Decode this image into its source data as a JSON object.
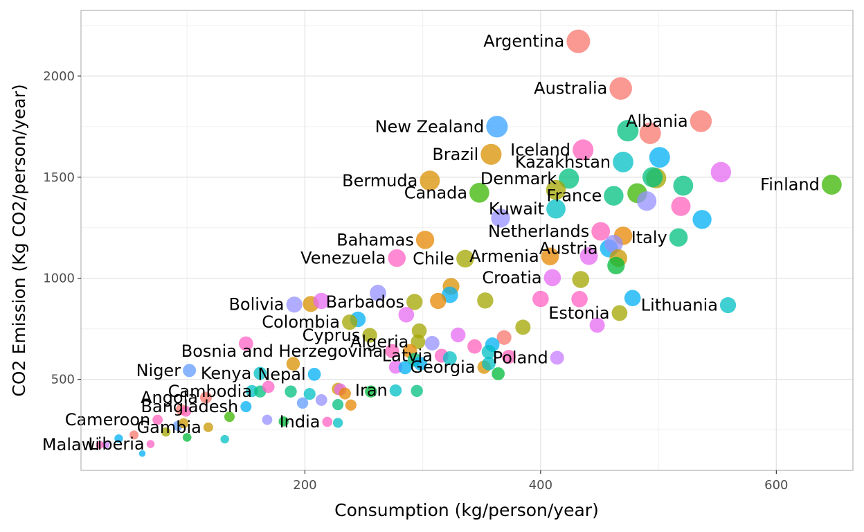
{
  "chart_data": {
    "type": "scatter",
    "title": "",
    "xlabel": "Consumption (kg/person/year)",
    "ylabel": "CO2 Emission (Kg CO2/person/year)",
    "xlim": [
      10,
      665
    ],
    "ylim": [
      50,
      2325
    ],
    "xticks": [
      200,
      400,
      600
    ],
    "yticks": [
      500,
      1000,
      1500,
      2000
    ],
    "grid": true,
    "legend": "none",
    "point_encoding": "point size proportional to value; color varies by country",
    "points": [
      {
        "label": "Argentina",
        "x": 432,
        "y": 2172,
        "color": "#F8766D"
      },
      {
        "label": "Australia",
        "x": 468,
        "y": 1939,
        "color": "#F8766D"
      },
      {
        "label": "New Zealand",
        "x": 363,
        "y": 1750,
        "color": "#35A2FF"
      },
      {
        "label": "Albania",
        "x": 536,
        "y": 1777,
        "color": "#F8766D"
      },
      {
        "label": "Iceland",
        "x": 436,
        "y": 1635,
        "color": "#FF62BC"
      },
      {
        "label": "",
        "x": 474,
        "y": 1730,
        "color": "#00BF7D"
      },
      {
        "label": "",
        "x": 493,
        "y": 1717,
        "color": "#F8766D"
      },
      {
        "label": "Brazil",
        "x": 358,
        "y": 1613,
        "color": "#D89000"
      },
      {
        "label": "Kazakhstan",
        "x": 470,
        "y": 1575,
        "color": "#00BFC4"
      },
      {
        "label": "",
        "x": 501,
        "y": 1598,
        "color": "#00B0F6"
      },
      {
        "label": "",
        "x": 553,
        "y": 1525,
        "color": "#E76BF3"
      },
      {
        "label": "Bermuda",
        "x": 306,
        "y": 1483,
        "color": "#D89000"
      },
      {
        "label": "Denmark",
        "x": 424,
        "y": 1493,
        "color": "#00BF7D"
      },
      {
        "label": "",
        "x": 498,
        "y": 1495,
        "color": "#A3A500"
      },
      {
        "label": "",
        "x": 495,
        "y": 1500,
        "color": "#00BF7D"
      },
      {
        "label": "",
        "x": 521,
        "y": 1458,
        "color": "#00BF7D"
      },
      {
        "label": "Finland",
        "x": 647,
        "y": 1463,
        "color": "#39B600"
      },
      {
        "label": "Canada",
        "x": 348,
        "y": 1423,
        "color": "#39B600"
      },
      {
        "label": "",
        "x": 413,
        "y": 1437,
        "color": "#A3A500"
      },
      {
        "label": "France",
        "x": 462,
        "y": 1408,
        "color": "#00BF7D"
      },
      {
        "label": "",
        "x": 482,
        "y": 1421,
        "color": "#39B600"
      },
      {
        "label": "",
        "x": 490,
        "y": 1382,
        "color": "#9590FF"
      },
      {
        "label": "",
        "x": 519,
        "y": 1356,
        "color": "#FF62BC"
      },
      {
        "label": "Kuwait",
        "x": 413,
        "y": 1343,
        "color": "#00BFC4"
      },
      {
        "label": "",
        "x": 366,
        "y": 1298,
        "color": "#9590FF"
      },
      {
        "label": "",
        "x": 537,
        "y": 1291,
        "color": "#00B0F6"
      },
      {
        "label": "Netherlands",
        "x": 451,
        "y": 1232,
        "color": "#FF62BC"
      },
      {
        "label": "",
        "x": 470,
        "y": 1210,
        "color": "#E58700"
      },
      {
        "label": "Italy",
        "x": 517,
        "y": 1202,
        "color": "#00BF7D"
      },
      {
        "label": "Bahamas",
        "x": 302,
        "y": 1190,
        "color": "#E58700"
      },
      {
        "label": "Austria",
        "x": 458,
        "y": 1148,
        "color": "#00B0F6"
      },
      {
        "label": "",
        "x": 462,
        "y": 1170,
        "color": "#9590FF"
      },
      {
        "label": "",
        "x": 466,
        "y": 1100,
        "color": "#C99800"
      },
      {
        "label": "",
        "x": 464,
        "y": 1063,
        "color": "#00BA38"
      },
      {
        "label": "Venezuela",
        "x": 278,
        "y": 1100,
        "color": "#FF61C3"
      },
      {
        "label": "Chile",
        "x": 336,
        "y": 1097,
        "color": "#A3A500"
      },
      {
        "label": "Armenia",
        "x": 408,
        "y": 1108,
        "color": "#E58700"
      },
      {
        "label": "",
        "x": 441,
        "y": 1110,
        "color": "#E76BF3"
      },
      {
        "label": "Croatia",
        "x": 410,
        "y": 1003,
        "color": "#E76BF3"
      },
      {
        "label": "",
        "x": 434,
        "y": 994,
        "color": "#A3A500"
      },
      {
        "label": "",
        "x": 324,
        "y": 960,
        "color": "#D89000"
      },
      {
        "label": "",
        "x": 323,
        "y": 918,
        "color": "#00B0F6"
      },
      {
        "label": "",
        "x": 262,
        "y": 927,
        "color": "#9590FF"
      },
      {
        "label": "Barbados",
        "x": 293,
        "y": 883,
        "color": "#A3A500"
      },
      {
        "label": "",
        "x": 313,
        "y": 888,
        "color": "#E58700"
      },
      {
        "label": "",
        "x": 353,
        "y": 890,
        "color": "#A3A500"
      },
      {
        "label": "",
        "x": 400,
        "y": 898,
        "color": "#FF61C3"
      },
      {
        "label": "",
        "x": 433,
        "y": 897,
        "color": "#FF61C3"
      },
      {
        "label": "",
        "x": 478,
        "y": 902,
        "color": "#00B0F6"
      },
      {
        "label": "Lithuania",
        "x": 559,
        "y": 867,
        "color": "#00BFC4"
      },
      {
        "label": "Bolivia",
        "x": 191,
        "y": 870,
        "color": "#9590FF"
      },
      {
        "label": "",
        "x": 205,
        "y": 873,
        "color": "#D89000"
      },
      {
        "label": "",
        "x": 214,
        "y": 888,
        "color": "#E76BF3"
      },
      {
        "label": "",
        "x": 245,
        "y": 797,
        "color": "#00B0F6"
      },
      {
        "label": "",
        "x": 286,
        "y": 820,
        "color": "#E76BF3"
      },
      {
        "label": "Estonia",
        "x": 467,
        "y": 828,
        "color": "#A3A500"
      },
      {
        "label": "Colombia",
        "x": 238,
        "y": 783,
        "color": "#A3A500"
      },
      {
        "label": "",
        "x": 385,
        "y": 758,
        "color": "#A3A500"
      },
      {
        "label": "",
        "x": 448,
        "y": 768,
        "color": "#E76BF3"
      },
      {
        "label": "Cyprus",
        "x": 255,
        "y": 718,
        "color": "#A3A500"
      },
      {
        "label": "",
        "x": 297,
        "y": 740,
        "color": "#A3A500"
      },
      {
        "label": "",
        "x": 330,
        "y": 720,
        "color": "#E76BF3"
      },
      {
        "label": "",
        "x": 369,
        "y": 707,
        "color": "#F8766D"
      },
      {
        "label": "Algeria",
        "x": 296,
        "y": 686,
        "color": "#A3A500"
      },
      {
        "label": "",
        "x": 308,
        "y": 679,
        "color": "#9590FF"
      },
      {
        "label": "",
        "x": 344,
        "y": 663,
        "color": "#FF62BC"
      },
      {
        "label": "",
        "x": 359,
        "y": 672,
        "color": "#00B0F6"
      },
      {
        "label": "",
        "x": 150,
        "y": 677,
        "color": "#FF61C3"
      },
      {
        "label": "Bosnia and Herzegovina",
        "x": 274,
        "y": 640,
        "color": "#FF62BC"
      },
      {
        "label": "",
        "x": 289,
        "y": 640,
        "color": "#E58700"
      },
      {
        "label": "",
        "x": 293,
        "y": 597,
        "color": "#00BF7D"
      },
      {
        "label": "Latvia",
        "x": 316,
        "y": 617,
        "color": "#FF61C3"
      },
      {
        "label": "",
        "x": 323,
        "y": 605,
        "color": "#00BFC4"
      },
      {
        "label": "",
        "x": 356,
        "y": 636,
        "color": "#00BFC4"
      },
      {
        "label": "",
        "x": 373,
        "y": 612,
        "color": "#FF62BC"
      },
      {
        "label": "Poland",
        "x": 414,
        "y": 607,
        "color": "#C77CFF"
      },
      {
        "label": "",
        "x": 277,
        "y": 561,
        "color": "#E76BF3"
      },
      {
        "label": "",
        "x": 285,
        "y": 558,
        "color": "#00B0F6"
      },
      {
        "label": "",
        "x": 298,
        "y": 578,
        "color": "#00B0F6"
      },
      {
        "label": "Georgia",
        "x": 352,
        "y": 560,
        "color": "#D89000"
      },
      {
        "label": "",
        "x": 356,
        "y": 578,
        "color": "#00BFC4"
      },
      {
        "label": "",
        "x": 364,
        "y": 528,
        "color": "#00BA38"
      },
      {
        "label": "Niger",
        "x": 102,
        "y": 544,
        "color": "#619CFF"
      },
      {
        "label": "",
        "x": 190,
        "y": 577,
        "color": "#D89000"
      },
      {
        "label": "Kenya",
        "x": 162,
        "y": 530,
        "color": "#00BFC4"
      },
      {
        "label": "Nepal",
        "x": 208,
        "y": 525,
        "color": "#00B0F6"
      },
      {
        "label": "",
        "x": 155,
        "y": 442,
        "color": "#00BFC4"
      },
      {
        "label": "Cambodia",
        "x": 162,
        "y": 440,
        "color": "#00BF7D"
      },
      {
        "label": "",
        "x": 188,
        "y": 440,
        "color": "#00BF7D"
      },
      {
        "label": "",
        "x": 204,
        "y": 428,
        "color": "#00BFC4"
      },
      {
        "label": "",
        "x": 228,
        "y": 453,
        "color": "#C99800"
      },
      {
        "label": "",
        "x": 230,
        "y": 450,
        "color": "#E76BF3"
      },
      {
        "label": "",
        "x": 234,
        "y": 430,
        "color": "#E58700"
      },
      {
        "label": "",
        "x": 256,
        "y": 440,
        "color": "#00BA38"
      },
      {
        "label": "Iran",
        "x": 277,
        "y": 445,
        "color": "#00BFC4"
      },
      {
        "label": "",
        "x": 295,
        "y": 443,
        "color": "#00BF7D"
      },
      {
        "label": "Angola",
        "x": 116,
        "y": 410,
        "color": "#F8766D"
      },
      {
        "label": "",
        "x": 169,
        "y": 463,
        "color": "#FF61C3"
      },
      {
        "label": "",
        "x": 198,
        "y": 383,
        "color": "#619CFF"
      },
      {
        "label": "",
        "x": 214,
        "y": 398,
        "color": "#9590FF"
      },
      {
        "label": "",
        "x": 228,
        "y": 375,
        "color": "#00BF7D"
      },
      {
        "label": "",
        "x": 239,
        "y": 373,
        "color": "#E58700"
      },
      {
        "label": "Bangladesh",
        "x": 150,
        "y": 365,
        "color": "#00B0F6"
      },
      {
        "label": "",
        "x": 95,
        "y": 350,
        "color": "#F8766D"
      },
      {
        "label": "",
        "x": 99,
        "y": 342,
        "color": "#FF62BC"
      },
      {
        "label": "Cameroon",
        "x": 75,
        "y": 300,
        "color": "#FF62BC"
      },
      {
        "label": "",
        "x": 92,
        "y": 270,
        "color": "#619CFF"
      },
      {
        "label": "",
        "x": 97,
        "y": 283,
        "color": "#C99800"
      },
      {
        "label": "",
        "x": 136,
        "y": 315,
        "color": "#39B600"
      },
      {
        "label": "Gambia",
        "x": 118,
        "y": 263,
        "color": "#C99800"
      },
      {
        "label": "",
        "x": 168,
        "y": 300,
        "color": "#9590FF"
      },
      {
        "label": "",
        "x": 182,
        "y": 292,
        "color": "#00BA38"
      },
      {
        "label": "India",
        "x": 219,
        "y": 290,
        "color": "#FF61C3"
      },
      {
        "label": "",
        "x": 228,
        "y": 285,
        "color": "#00BFC4"
      },
      {
        "label": "",
        "x": 82,
        "y": 240,
        "color": "#A3A500"
      },
      {
        "label": "",
        "x": 100,
        "y": 213,
        "color": "#00BA38"
      },
      {
        "label": "Liberia",
        "x": 69,
        "y": 180,
        "color": "#FF61C3"
      },
      {
        "label": "",
        "x": 55,
        "y": 225,
        "color": "#F8766D"
      },
      {
        "label": "",
        "x": 42,
        "y": 207,
        "color": "#00B0F6"
      },
      {
        "label": "",
        "x": 132,
        "y": 204,
        "color": "#00BFC4"
      },
      {
        "label": "Malawi",
        "x": 31,
        "y": 177,
        "color": "#C77CFF"
      },
      {
        "label": "",
        "x": 26,
        "y": 176,
        "color": "#FF62BC"
      },
      {
        "label": "",
        "x": 62,
        "y": 133,
        "color": "#00B0F6"
      }
    ]
  }
}
